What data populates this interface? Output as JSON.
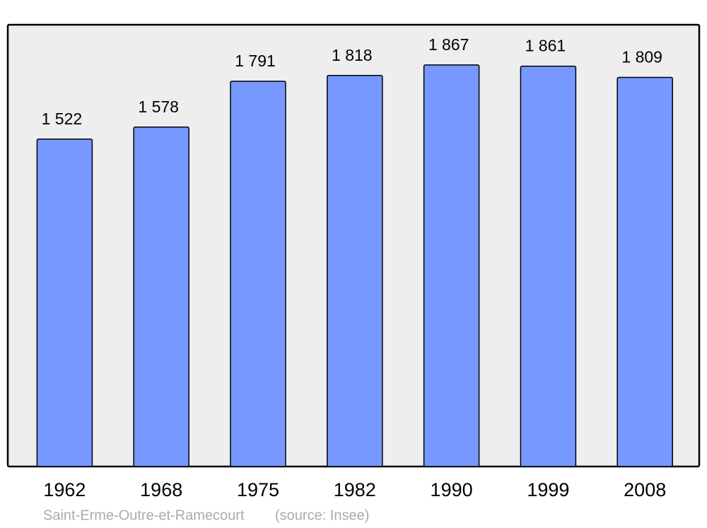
{
  "chart_data": {
    "type": "bar",
    "categories": [
      "1962",
      "1968",
      "1975",
      "1982",
      "1990",
      "1999",
      "2008"
    ],
    "values": [
      1522,
      1578,
      1791,
      1818,
      1867,
      1861,
      1809
    ],
    "value_labels": [
      "1 522",
      "1 578",
      "1 791",
      "1 818",
      "1 867",
      "1 861",
      "1 809"
    ],
    "color": "#7799ff",
    "caption": "Saint-Erme-Outre-et-Ramecourt",
    "source": "(source: Insee)"
  }
}
